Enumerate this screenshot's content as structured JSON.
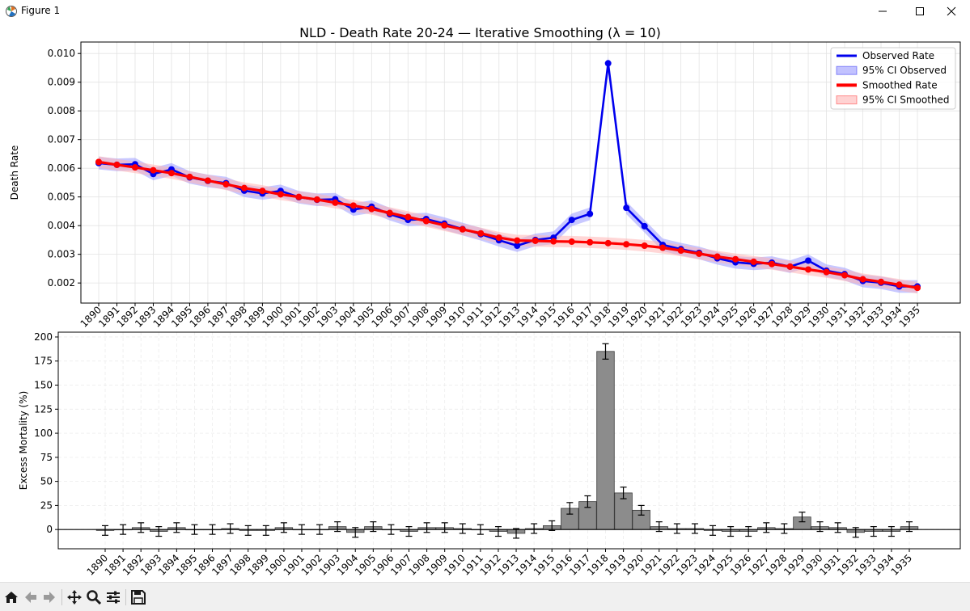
{
  "window": {
    "title": "Figure 1"
  },
  "toolbar": {
    "icons": [
      "home-icon",
      "back-arrow-icon",
      "forward-arrow-icon",
      "pan-icon",
      "zoom-icon",
      "configure-subplots-icon",
      "save-icon"
    ]
  },
  "colors": {
    "observed": "#0000ee",
    "observed_ci": "#9a9aff",
    "smoothed": "#ff0000",
    "smoothed_ci": "#ffb4b4",
    "bars": "#8c8c8c"
  },
  "chart_data": [
    {
      "type": "line",
      "title": "NLD - Death Rate 20-24 — Iterative Smoothing (λ = 10)",
      "xlabel": "",
      "ylabel": "Death Rate",
      "x": [
        1890,
        1891,
        1892,
        1893,
        1894,
        1895,
        1896,
        1897,
        1898,
        1899,
        1900,
        1901,
        1902,
        1903,
        1904,
        1905,
        1906,
        1907,
        1908,
        1909,
        1910,
        1911,
        1912,
        1913,
        1914,
        1915,
        1916,
        1917,
        1918,
        1919,
        1920,
        1921,
        1922,
        1923,
        1924,
        1925,
        1926,
        1927,
        1928,
        1929,
        1930,
        1931,
        1932,
        1933,
        1934,
        1935
      ],
      "ylim": [
        0.0013,
        0.0104
      ],
      "yticks": [
        "0.002",
        "0.003",
        "0.004",
        "0.005",
        "0.006",
        "0.007",
        "0.008",
        "0.009",
        "0.010"
      ],
      "grid": true,
      "legend_position": "top-right",
      "legend": [
        "Observed Rate",
        "95% CI Observed",
        "Smoothed Rate",
        "95% CI Smoothed"
      ],
      "series": [
        {
          "name": "Observed Rate",
          "values": [
            0.00618,
            0.00612,
            0.00614,
            0.0058,
            0.00596,
            0.00568,
            0.00556,
            0.00548,
            0.00522,
            0.00512,
            0.00521,
            0.00499,
            0.0049,
            0.00492,
            0.00456,
            0.00466,
            0.0044,
            0.0042,
            0.00423,
            0.00407,
            0.00388,
            0.0037,
            0.00349,
            0.0033,
            0.0035,
            0.00358,
            0.0042,
            0.00441,
            0.00966,
            0.00462,
            0.00398,
            0.00333,
            0.00318,
            0.00305,
            0.00286,
            0.00272,
            0.00267,
            0.00271,
            0.00257,
            0.00278,
            0.00243,
            0.00231,
            0.00207,
            0.00201,
            0.00188,
            0.00188
          ]
        },
        {
          "name": "Smoothed Rate",
          "values": [
            0.00622,
            0.00612,
            0.00603,
            0.00593,
            0.00583,
            0.0057,
            0.00557,
            0.00544,
            0.00531,
            0.00521,
            0.00509,
            0.005,
            0.00491,
            0.0048,
            0.0047,
            0.00458,
            0.00444,
            0.0043,
            0.00416,
            0.00401,
            0.00387,
            0.00373,
            0.00358,
            0.00348,
            0.00347,
            0.00345,
            0.00344,
            0.00342,
            0.00339,
            0.00335,
            0.0033,
            0.00323,
            0.00313,
            0.00302,
            0.00292,
            0.00283,
            0.00274,
            0.00266,
            0.00257,
            0.00247,
            0.00238,
            0.00227,
            0.00213,
            0.00204,
            0.00194,
            0.00183
          ]
        }
      ],
      "ci_observed_halfwidth": 0.00022,
      "ci_smoothed_halfwidth": 0.0002
    },
    {
      "type": "bar",
      "title": "",
      "xlabel": "",
      "ylabel": "Excess Mortality (%)",
      "categories": [
        "1890",
        "1891",
        "1892",
        "1893",
        "1894",
        "1895",
        "1896",
        "1897",
        "1898",
        "1899",
        "1900",
        "1901",
        "1902",
        "1903",
        "1904",
        "1905",
        "1906",
        "1907",
        "1908",
        "1909",
        "1910",
        "1911",
        "1912",
        "1913",
        "1914",
        "1915",
        "1916",
        "1917",
        "1918",
        "1919",
        "1920",
        "1921",
        "1922",
        "1923",
        "1924",
        "1925",
        "1926",
        "1927",
        "1928",
        "1929",
        "1930",
        "1931",
        "1932",
        "1933",
        "1934",
        "1935"
      ],
      "ylim": [
        -20,
        205
      ],
      "yticks": [
        "0",
        "25",
        "50",
        "75",
        "100",
        "125",
        "150",
        "175",
        "200"
      ],
      "grid": true,
      "values": [
        -1,
        0,
        2,
        -2,
        2,
        0,
        0,
        1,
        -1,
        -1,
        2,
        0,
        0,
        3,
        -3,
        3,
        0,
        -2,
        2,
        2,
        1,
        0,
        -2,
        -4,
        1,
        4,
        22,
        29,
        185,
        38,
        20,
        3,
        1,
        1,
        -1,
        -2,
        -2,
        2,
        1,
        13,
        3,
        2,
        -3,
        -2,
        -2,
        3
      ],
      "errors": [
        5,
        5,
        5,
        5,
        5,
        5,
        5,
        5,
        5,
        5,
        5,
        5,
        5,
        5,
        5,
        5,
        5,
        5,
        5,
        5,
        5,
        5,
        5,
        5,
        5,
        5,
        6,
        6,
        8,
        6,
        5,
        5,
        5,
        5,
        5,
        5,
        5,
        5,
        5,
        5,
        5,
        5,
        5,
        5,
        5,
        5
      ]
    }
  ]
}
